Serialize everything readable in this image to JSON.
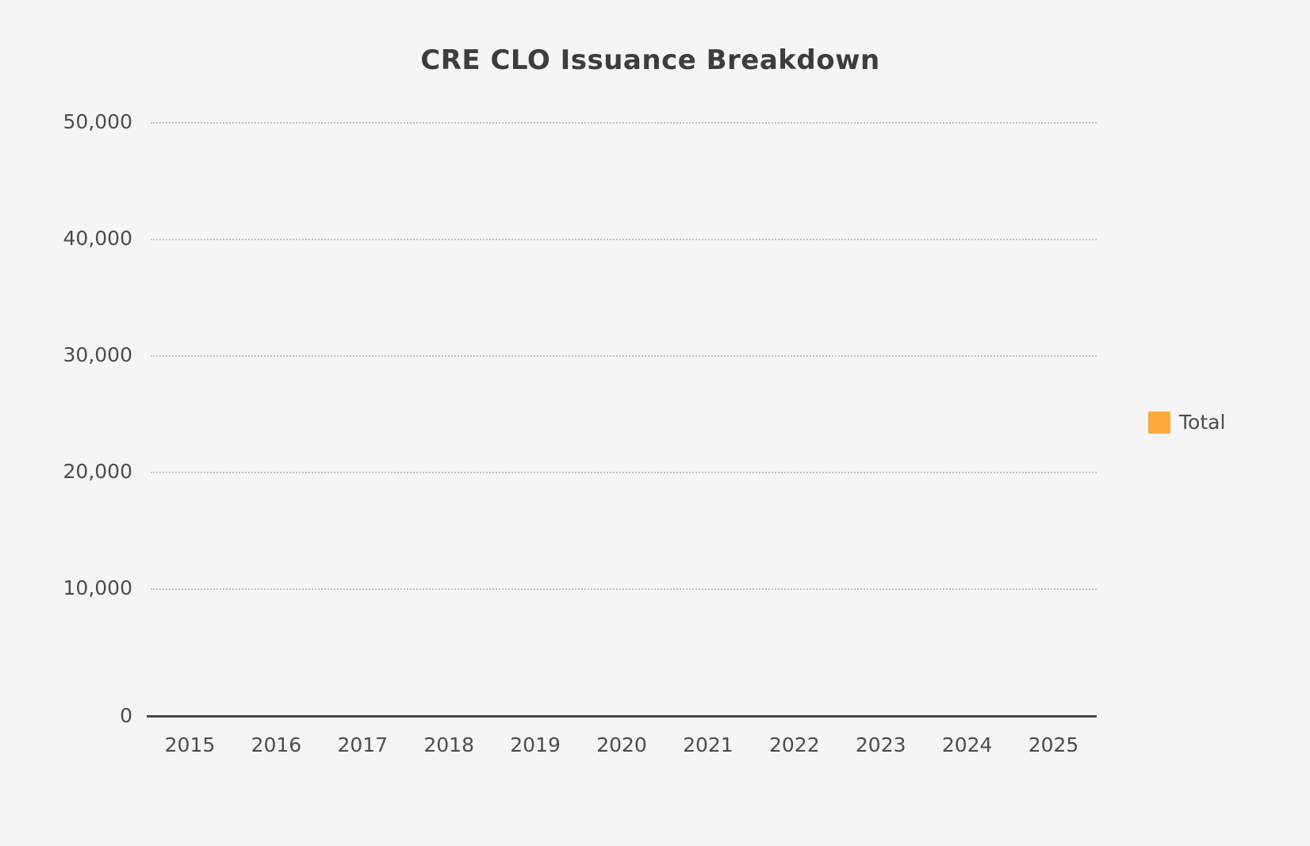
{
  "title": "CRE CLO Issuance Breakdown",
  "legend": {
    "position": "right",
    "items": [
      {
        "label": "Total",
        "color": "#FBAB3C"
      }
    ]
  },
  "y_axis": {
    "tick_labels": [
      "50,000",
      "40,000",
      "30,000",
      "20,000",
      "10,000",
      "0"
    ],
    "tick_values": [
      50000,
      40000,
      30000,
      20000,
      10000,
      0
    ]
  },
  "x_axis": {
    "tick_labels": [
      "2015",
      "2016",
      "2017",
      "2018",
      "2019",
      "2020",
      "2021",
      "2022",
      "2023",
      "2024",
      "2025"
    ]
  },
  "colors": {
    "background": "#F5F5F6",
    "title_text": "#3D3D3D",
    "axis_text": "#4C4C4C",
    "axis_line": "#454545",
    "gridline": "#C2C2C2",
    "series_total": "#FBAB3C"
  },
  "chart_data": {
    "type": "bar",
    "title": "CRE CLO Issuance Breakdown",
    "categories": [
      "2015",
      "2016",
      "2017",
      "2018",
      "2019",
      "2020",
      "2021",
      "2022",
      "2023",
      "2024",
      "2025"
    ],
    "series": [
      {
        "name": "Total",
        "color": "#FBAB3C",
        "values": [
          0,
          0,
          0,
          0,
          0,
          0,
          0,
          0,
          0,
          0,
          0
        ]
      }
    ],
    "xlabel": "",
    "ylabel": "",
    "ylim": [
      0,
      50000
    ],
    "y_tick_interval": 10000,
    "grid": "horizontal-dotted",
    "legend_position": "right"
  }
}
